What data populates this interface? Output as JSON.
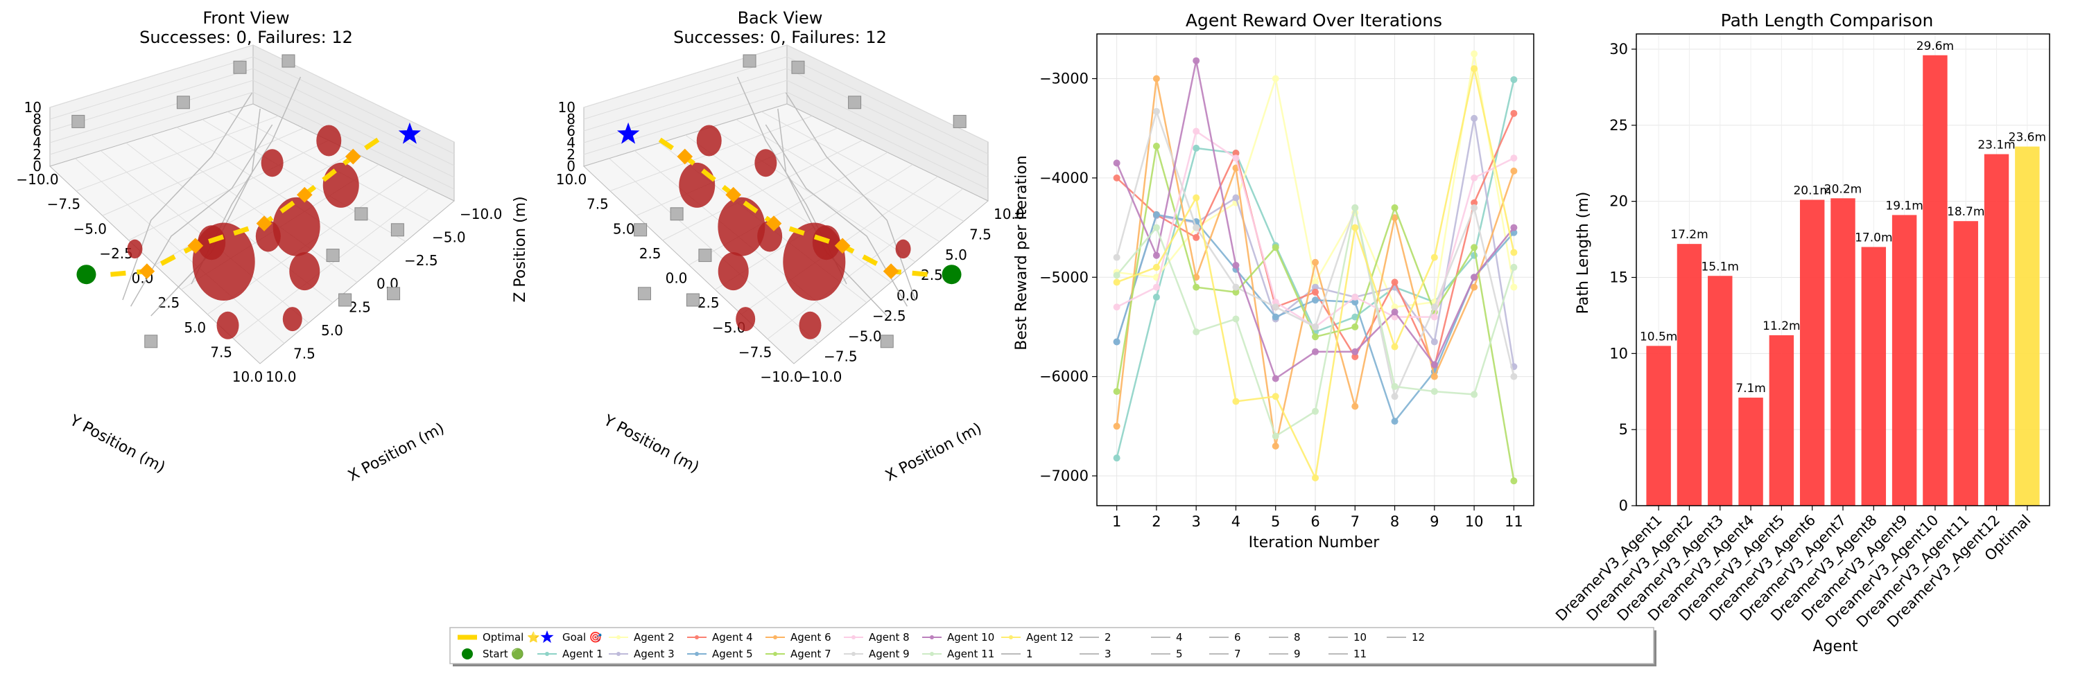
{
  "colors": {
    "optimal": "#FFD700",
    "start": "#008000",
    "goal": "#0000FF",
    "obstacle": "#B22222",
    "bar_red": "#FF4040",
    "bar_optimal": "#FFE14A",
    "agent_colors": [
      "#8DD3C7",
      "#FFFFB3",
      "#BEBADA",
      "#FB8072",
      "#80B1D3",
      "#FDB462",
      "#B3DE69",
      "#FCCDE5",
      "#D9D9D9",
      "#BC80BD",
      "#CCEBC5",
      "#FFED6F"
    ]
  },
  "views": {
    "front": {
      "title": "Front View",
      "subtitle": "Successes: 0, Failures: 12",
      "xlabel": "X Position (m)",
      "ylabel": "Y Position (m)",
      "zlabel": "",
      "x_ticks": [
        "10.0",
        "7.5",
        "5.0",
        "2.5",
        "0.0",
        "−2.5",
        "−5.0",
        "−10.0"
      ],
      "y_ticks": [
        "−10.0",
        "−7.5",
        "−5.0",
        "−2.5",
        "0.0",
        "2.5",
        "5.0",
        "7.5",
        "10.0"
      ],
      "z_ticks": [
        "0",
        "2",
        "4",
        "6",
        "8",
        "10"
      ]
    },
    "back": {
      "title": "Back View",
      "subtitle": "Successes: 0, Failures: 12",
      "xlabel": "X Position (m)",
      "ylabel": "Y Position (m)",
      "zlabel": "Z Position (m)",
      "x_ticks": [
        "−10.0",
        "−7.5",
        "−5.0",
        "−2.5",
        "0.0",
        "2.5",
        "5.0",
        "7.5",
        "10.0"
      ],
      "y_ticks": [
        "10.0",
        "7.5",
        "5.0",
        "2.5",
        "0.0",
        "−2.5",
        "−5.0",
        "−7.5",
        "−10.0"
      ],
      "z_ticks": [
        "0",
        "2",
        "4",
        "6",
        "8",
        "10"
      ]
    }
  },
  "chart_data": [
    {
      "type": "scatter",
      "title": "Front View",
      "subtitle": "Successes: 0, Failures: 12",
      "note": "3D path plot with spherical obstacles, start and goal markers"
    },
    {
      "type": "scatter",
      "title": "Back View",
      "subtitle": "Successes: 0, Failures: 12"
    },
    {
      "type": "line",
      "title": "Agent Reward Over Iterations",
      "xlabel": "Iteration Number",
      "ylabel": "Best Reward per Iteration",
      "x": [
        1,
        2,
        3,
        4,
        5,
        6,
        7,
        8,
        9,
        10,
        11
      ],
      "ylim": [
        -7300,
        -2550
      ],
      "y_ticks": [
        -7000,
        -6000,
        -5000,
        -4000,
        -3000
      ],
      "y_tick_labels": [
        "−7000",
        "−6000",
        "−5000",
        "−4000",
        "−3000"
      ],
      "grid": true,
      "series": [
        {
          "name": "Agent 1",
          "values": [
            -6820,
            -5200,
            -3700,
            -3750,
            -4680,
            -5550,
            -5400,
            -5100,
            -5250,
            -4780,
            -3010
          ]
        },
        {
          "name": "Agent 2",
          "values": [
            -4950,
            -5000,
            -4500,
            -4250,
            -3000,
            -5050,
            -4350,
            -5300,
            -5250,
            -2750,
            -5100
          ]
        },
        {
          "name": "Agent 3",
          "values": [
            -5650,
            -4380,
            -4450,
            -4200,
            -5420,
            -5100,
            -5200,
            -5100,
            -5650,
            -3400,
            -5900
          ]
        },
        {
          "name": "Agent 4",
          "values": [
            -4000,
            -4370,
            -4600,
            -3750,
            -5300,
            -5150,
            -5800,
            -5050,
            -5900,
            -4250,
            -3350
          ]
        },
        {
          "name": "Agent 5",
          "values": [
            -5650,
            -4370,
            -4440,
            -4920,
            -5400,
            -5230,
            -5250,
            -6450,
            -5950,
            -5000,
            -4550
          ]
        },
        {
          "name": "Agent 6",
          "values": [
            -6500,
            -3000,
            -5000,
            -3900,
            -6700,
            -4850,
            -6300,
            -4400,
            -6000,
            -5100,
            -3930
          ]
        },
        {
          "name": "Agent 7",
          "values": [
            -6150,
            -3680,
            -5100,
            -5150,
            -4700,
            -5600,
            -5500,
            -4300,
            -5350,
            -4700,
            -7050
          ]
        },
        {
          "name": "Agent 8",
          "values": [
            -5300,
            -5100,
            -3530,
            -3800,
            -5250,
            -5500,
            -5200,
            -5400,
            -5400,
            -4000,
            -3800
          ]
        },
        {
          "name": "Agent 9",
          "values": [
            -4800,
            -3330,
            -4500,
            -5100,
            -5300,
            -5500,
            -4300,
            -6200,
            -5300,
            -4300,
            -6000
          ]
        },
        {
          "name": "Agent 10",
          "values": [
            -3850,
            -4780,
            -2820,
            -4880,
            -6020,
            -5750,
            -5750,
            -5350,
            -5880,
            -5000,
            -4500
          ]
        },
        {
          "name": "Agent 11",
          "values": [
            -4980,
            -4500,
            -5550,
            -5420,
            -6600,
            -6350,
            -4300,
            -6100,
            -6150,
            -6180,
            -4900
          ]
        },
        {
          "name": "Agent 12",
          "values": [
            -5050,
            -4900,
            -4200,
            -6250,
            -6200,
            -7020,
            -4500,
            -5700,
            -4800,
            -2900,
            -4750
          ]
        }
      ]
    },
    {
      "type": "bar",
      "title": "Path Length Comparison",
      "xlabel": "Agent",
      "ylabel": "Path Length (m)",
      "ylim": [
        0,
        31
      ],
      "y_ticks": [
        0,
        5,
        10,
        15,
        20,
        25,
        30
      ],
      "grid": true,
      "categories": [
        "DreamerV3_Agent1",
        "DreamerV3_Agent2",
        "DreamerV3_Agent3",
        "DreamerV3_Agent4",
        "DreamerV3_Agent5",
        "DreamerV3_Agent6",
        "DreamerV3_Agent7",
        "DreamerV3_Agent8",
        "DreamerV3_Agent9",
        "DreamerV3_Agent10",
        "DreamerV3_Agent11",
        "DreamerV3_Agent12",
        "Optimal"
      ],
      "values": [
        10.5,
        17.2,
        15.1,
        7.1,
        11.2,
        20.1,
        20.2,
        17.0,
        19.1,
        29.6,
        18.7,
        23.1,
        23.6
      ],
      "data_labels": [
        "10.5m",
        "17.2m",
        "15.1m",
        "7.1m",
        "11.2m",
        "20.1m",
        "20.2m",
        "17.0m",
        "19.1m",
        "29.6m",
        "18.7m",
        "23.1m",
        "23.6m"
      ]
    }
  ],
  "legend": {
    "entries": [
      {
        "label": "Optimal ⭐",
        "kind": "thick",
        "color": "#FFD700"
      },
      {
        "label": "Start 🟢",
        "kind": "dot",
        "color": "#008000"
      },
      {
        "label": "Goal 🎯",
        "kind": "star",
        "color": "#0000FF"
      },
      {
        "label": "Agent 1",
        "kind": "line",
        "color": "#8DD3C7"
      },
      {
        "label": "Agent 2",
        "kind": "line",
        "color": "#FFFFB3"
      },
      {
        "label": "Agent 3",
        "kind": "line",
        "color": "#BEBADA"
      },
      {
        "label": "Agent 4",
        "kind": "line",
        "color": "#FB8072"
      },
      {
        "label": "Agent 5",
        "kind": "line",
        "color": "#80B1D3"
      },
      {
        "label": "Agent 6",
        "kind": "line",
        "color": "#FDB462"
      },
      {
        "label": "Agent 7",
        "kind": "line",
        "color": "#B3DE69"
      },
      {
        "label": "Agent 8",
        "kind": "line",
        "color": "#FCCDE5"
      },
      {
        "label": "Agent 9",
        "kind": "line",
        "color": "#D9D9D9"
      },
      {
        "label": "Agent 10",
        "kind": "line",
        "color": "#BC80BD"
      },
      {
        "label": "Agent 11",
        "kind": "line",
        "color": "#CCEBC5"
      },
      {
        "label": "Agent 12",
        "kind": "line",
        "color": "#FFED6F"
      },
      {
        "label": "1",
        "kind": "gray",
        "color": "#BBBBBB"
      },
      {
        "label": "2",
        "kind": "gray",
        "color": "#BBBBBB"
      },
      {
        "label": "3",
        "kind": "gray",
        "color": "#BBBBBB"
      },
      {
        "label": "4",
        "kind": "gray",
        "color": "#BBBBBB"
      },
      {
        "label": "5",
        "kind": "gray",
        "color": "#BBBBBB"
      },
      {
        "label": "6",
        "kind": "gray",
        "color": "#BBBBBB"
      },
      {
        "label": "7",
        "kind": "gray",
        "color": "#BBBBBB"
      },
      {
        "label": "8",
        "kind": "gray",
        "color": "#BBBBBB"
      },
      {
        "label": "9",
        "kind": "gray",
        "color": "#BBBBBB"
      },
      {
        "label": "10",
        "kind": "gray",
        "color": "#BBBBBB"
      },
      {
        "label": "11",
        "kind": "gray",
        "color": "#BBBBBB"
      },
      {
        "label": "12",
        "kind": "gray",
        "color": "#BBBBBB"
      }
    ]
  }
}
